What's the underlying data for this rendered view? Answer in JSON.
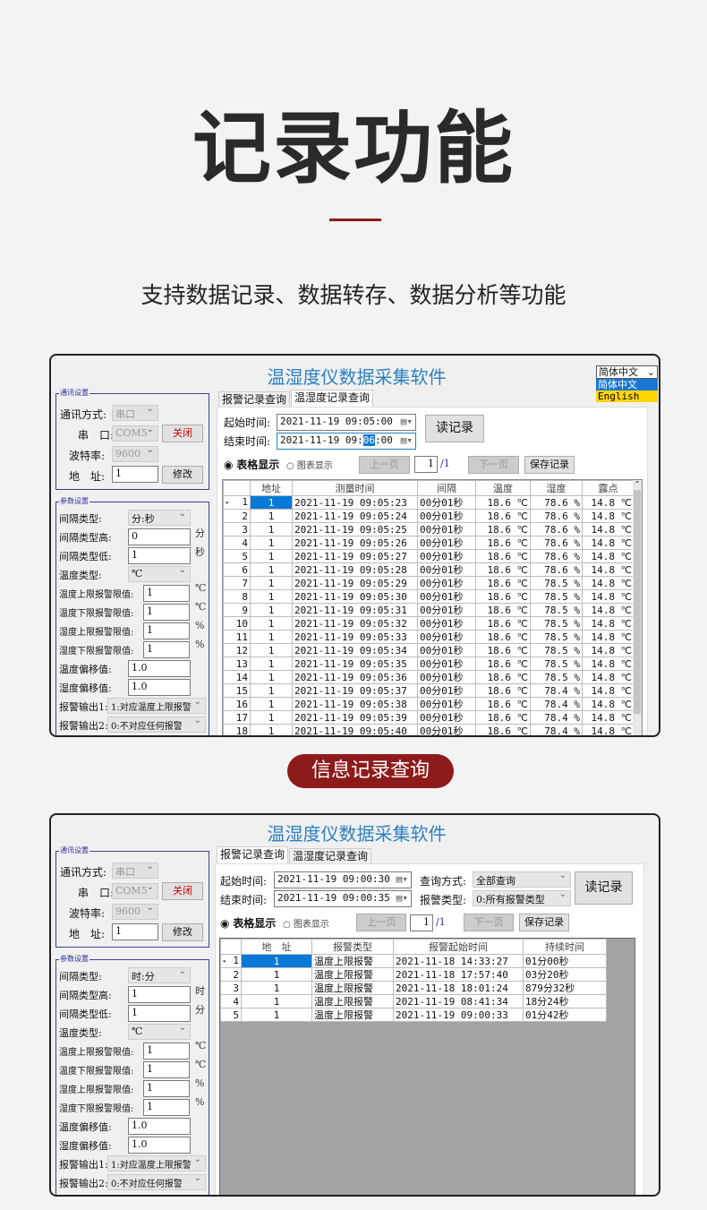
{
  "hero": {
    "title": "记录功能",
    "subtitle": "支持数据记录、数据转存、数据分析等功能",
    "accent": "#8e1b1b"
  },
  "badge": "信息记录查询",
  "app_title": "温湿度仪数据采集软件",
  "language": {
    "selected": "简体中文",
    "options": [
      "简体中文",
      "English"
    ]
  },
  "comm": {
    "title": "通讯设置",
    "mode_label": "通讯方式:",
    "mode_value": "串口",
    "port_label": "串　口:",
    "port_value": "COM5",
    "close_button": "关闭",
    "baud_label": "波特率:",
    "baud_value": "9600",
    "addr_label": "地　址:",
    "addr_value": "1",
    "modify_button": "修改"
  },
  "tabs": [
    "报警记录查询",
    "温湿度记录查询"
  ],
  "common": {
    "start_label": "起始时间:",
    "end_label": "结束时间:",
    "read_button": "读记录",
    "table_radio": "表格显示",
    "chart_radio": "图表显示",
    "prev_button": "上一页",
    "page": "1",
    "page_total": "/1",
    "next_button": "下一页",
    "save_button": "保存记录"
  },
  "panel1": {
    "params": {
      "title": "参数设置",
      "rows": [
        {
          "label": "间隔类型:",
          "value": "分:秒",
          "kind": "select"
        },
        {
          "label": "间隔类型高:",
          "value": "0",
          "kind": "input",
          "unit": "分"
        },
        {
          "label": "间隔类型低:",
          "value": "1",
          "kind": "input",
          "unit": "秒"
        },
        {
          "label": "温度类型:",
          "value": "℃",
          "kind": "select"
        },
        {
          "label": "温度上限报警限值:",
          "value": "1",
          "kind": "input2",
          "unit": "℃"
        },
        {
          "label": "温度下限报警限值:",
          "value": "1",
          "kind": "input2",
          "unit": "℃"
        },
        {
          "label": "湿度上限报警限值:",
          "value": "1",
          "kind": "input2",
          "unit": "%"
        },
        {
          "label": "湿度下限报警限值:",
          "value": "1",
          "kind": "input2",
          "unit": "%"
        },
        {
          "label": "温度偏移值:",
          "value": "1.0",
          "kind": "input"
        },
        {
          "label": "湿度偏移值:",
          "value": "1.0",
          "kind": "input"
        },
        {
          "label": "报警输出1:",
          "value": "1:对应温度上限报警",
          "kind": "wide"
        },
        {
          "label": "报警输出2:",
          "value": "0:不对应任何报警",
          "kind": "wide"
        }
      ]
    },
    "start_time": "2021-11-19 09:05:00",
    "end_time_prefix": "2021-11-19 09:",
    "end_time_sel": "06",
    "end_time_suffix": ":00",
    "columns": [
      "地址",
      "测量时间",
      "间隔",
      "温度",
      "湿度",
      "露点"
    ],
    "rows": [
      [
        "1",
        "1",
        "2021-11-19 09:05:23",
        "00分01秒",
        "18.6 ℃",
        "78.6 %",
        "14.8 ℃"
      ],
      [
        "2",
        "1",
        "2021-11-19 09:05:24",
        "00分01秒",
        "18.6 ℃",
        "78.6 %",
        "14.8 ℃"
      ],
      [
        "3",
        "1",
        "2021-11-19 09:05:25",
        "00分01秒",
        "18.6 ℃",
        "78.6 %",
        "14.8 ℃"
      ],
      [
        "4",
        "1",
        "2021-11-19 09:05:26",
        "00分01秒",
        "18.6 ℃",
        "78.6 %",
        "14.8 ℃"
      ],
      [
        "5",
        "1",
        "2021-11-19 09:05:27",
        "00分01秒",
        "18.6 ℃",
        "78.6 %",
        "14.8 ℃"
      ],
      [
        "6",
        "1",
        "2021-11-19 09:05:28",
        "00分01秒",
        "18.6 ℃",
        "78.6 %",
        "14.8 ℃"
      ],
      [
        "7",
        "1",
        "2021-11-19 09:05:29",
        "00分01秒",
        "18.6 ℃",
        "78.5 %",
        "14.8 ℃"
      ],
      [
        "8",
        "1",
        "2021-11-19 09:05:30",
        "00分01秒",
        "18.6 ℃",
        "78.5 %",
        "14.8 ℃"
      ],
      [
        "9",
        "1",
        "2021-11-19 09:05:31",
        "00分01秒",
        "18.6 ℃",
        "78.5 %",
        "14.8 ℃"
      ],
      [
        "10",
        "1",
        "2021-11-19 09:05:32",
        "00分01秒",
        "18.6 ℃",
        "78.5 %",
        "14.8 ℃"
      ],
      [
        "11",
        "1",
        "2021-11-19 09:05:33",
        "00分01秒",
        "18.6 ℃",
        "78.5 %",
        "14.8 ℃"
      ],
      [
        "12",
        "1",
        "2021-11-19 09:05:34",
        "00分01秒",
        "18.6 ℃",
        "78.5 %",
        "14.8 ℃"
      ],
      [
        "13",
        "1",
        "2021-11-19 09:05:35",
        "00分01秒",
        "18.6 ℃",
        "78.5 %",
        "14.8 ℃"
      ],
      [
        "14",
        "1",
        "2021-11-19 09:05:36",
        "00分01秒",
        "18.6 ℃",
        "78.5 %",
        "14.8 ℃"
      ],
      [
        "15",
        "1",
        "2021-11-19 09:05:37",
        "00分01秒",
        "18.6 ℃",
        "78.4 %",
        "14.8 ℃"
      ],
      [
        "16",
        "1",
        "2021-11-19 09:05:38",
        "00分01秒",
        "18.6 ℃",
        "78.4 %",
        "14.8 ℃"
      ],
      [
        "17",
        "1",
        "2021-11-19 09:05:39",
        "00分01秒",
        "18.6 ℃",
        "78.4 %",
        "14.8 ℃"
      ],
      [
        "18",
        "1",
        "2021-11-19 09:05:40",
        "00分01秒",
        "18.6 ℃",
        "78.4 %",
        "14.8 ℃"
      ]
    ]
  },
  "panel2": {
    "params": {
      "title": "参数设置",
      "rows": [
        {
          "label": "间隔类型:",
          "value": "时:分",
          "kind": "select"
        },
        {
          "label": "间隔类型高:",
          "value": "1",
          "kind": "input",
          "unit": "时"
        },
        {
          "label": "间隔类型低:",
          "value": "1",
          "kind": "input",
          "unit": "分"
        },
        {
          "label": "温度类型:",
          "value": "℃",
          "kind": "select"
        },
        {
          "label": "温度上限报警限值:",
          "value": "1",
          "kind": "input2",
          "unit": "℃"
        },
        {
          "label": "温度下限报警限值:",
          "value": "1",
          "kind": "input2",
          "unit": "℃"
        },
        {
          "label": "湿度上限报警限值:",
          "value": "1",
          "kind": "input2",
          "unit": "%"
        },
        {
          "label": "湿度下限报警限值:",
          "value": "1",
          "kind": "input2",
          "unit": "%"
        },
        {
          "label": "温度偏移值:",
          "value": "1.0",
          "kind": "input"
        },
        {
          "label": "湿度偏移值:",
          "value": "1.0",
          "kind": "input"
        },
        {
          "label": "报警输出1:",
          "value": "1:对应温度上限报警",
          "kind": "wide"
        },
        {
          "label": "报警输出2:",
          "value": "0:不对应任何报警",
          "kind": "wide"
        }
      ]
    },
    "start_time": "2021-11-19 09:00:30",
    "end_time": "2021-11-19 09:00:35",
    "query_label": "查询方式:",
    "query_value": "全部查询",
    "alarm_type_label": "报警类型:",
    "alarm_type_value": "0:所有报警类型",
    "columns": [
      "地　址",
      "报警类型",
      "报警起始时间",
      "持续时间"
    ],
    "rows": [
      [
        "1",
        "1",
        "温度上限报警",
        "2021-11-18 14:33:27",
        "01分00秒"
      ],
      [
        "2",
        "1",
        "温度上限报警",
        "2021-11-18 17:57:40",
        "03分20秒"
      ],
      [
        "3",
        "1",
        "温度上限报警",
        "2021-11-18 18:01:24",
        "879分32秒"
      ],
      [
        "4",
        "1",
        "温度上限报警",
        "2021-11-19 08:41:34",
        "18分24秒"
      ],
      [
        "5",
        "1",
        "温度上限报警",
        "2021-11-19 09:00:33",
        "01分42秒"
      ]
    ]
  }
}
